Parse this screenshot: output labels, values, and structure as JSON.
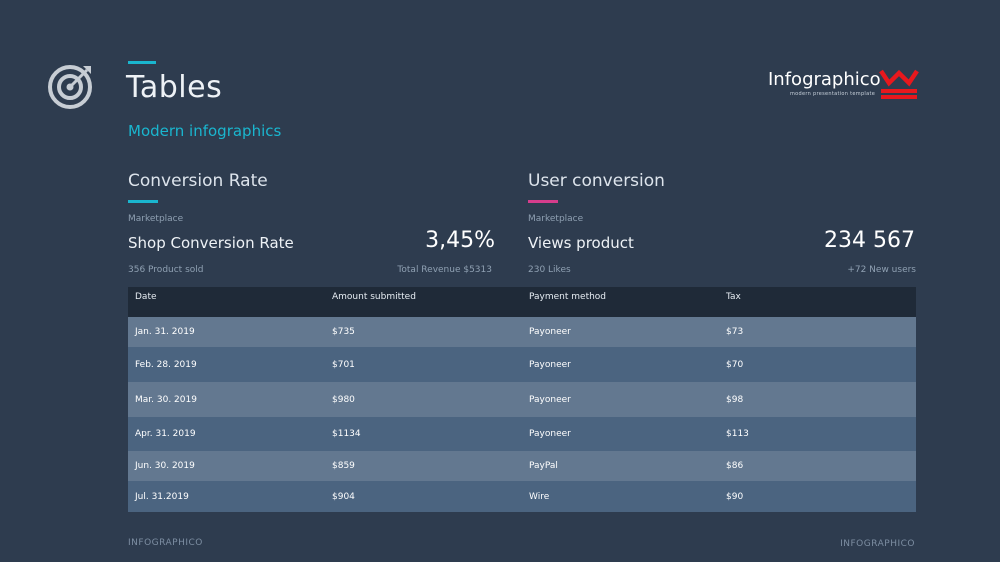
{
  "header": {
    "title": "Tables",
    "subtitle": "Modern infographics",
    "accent_color": "#1ab6cf"
  },
  "brand": {
    "name": "Infographico",
    "tagline": "modern presentation template",
    "logo_color": "#e8181d"
  },
  "sections": [
    {
      "title": "Conversion Rate",
      "accent_color": "#1ab6cf",
      "category": "Marketplace",
      "metric_label": "Shop Conversion Rate",
      "metric_value": "3,45%",
      "footnote_left": "356 Product sold",
      "footnote_right": "Total Revenue  $5313"
    },
    {
      "title": "User conversion",
      "accent_color": "#d63d8c",
      "category": "Marketplace",
      "metric_label": "Views product",
      "metric_value": "234 567",
      "footnote_left": "230 Likes",
      "footnote_right": "+72 New users"
    }
  ],
  "table": {
    "columns": [
      "Date",
      "Amount submitted",
      "Payment method",
      "Tax"
    ],
    "rows": [
      [
        "Jan. 31. 2019",
        "$735",
        "Payoneer",
        "$73"
      ],
      [
        "Feb. 28. 2019",
        "$701",
        "Payoneer",
        "$70"
      ],
      [
        "Mar. 30. 2019",
        "$980",
        "Payoneer",
        "$98"
      ],
      [
        "Apr. 31. 2019",
        "$1134",
        "Payoneer",
        "$113"
      ],
      [
        "Jun. 30. 2019",
        "$859",
        "PayPal",
        "$86"
      ],
      [
        "Jul. 31.2019",
        "$904",
        "Wire",
        "$90"
      ]
    ]
  },
  "footer": {
    "left": "INFOGRAPHICO",
    "right": "INFOGRAPHICO"
  }
}
